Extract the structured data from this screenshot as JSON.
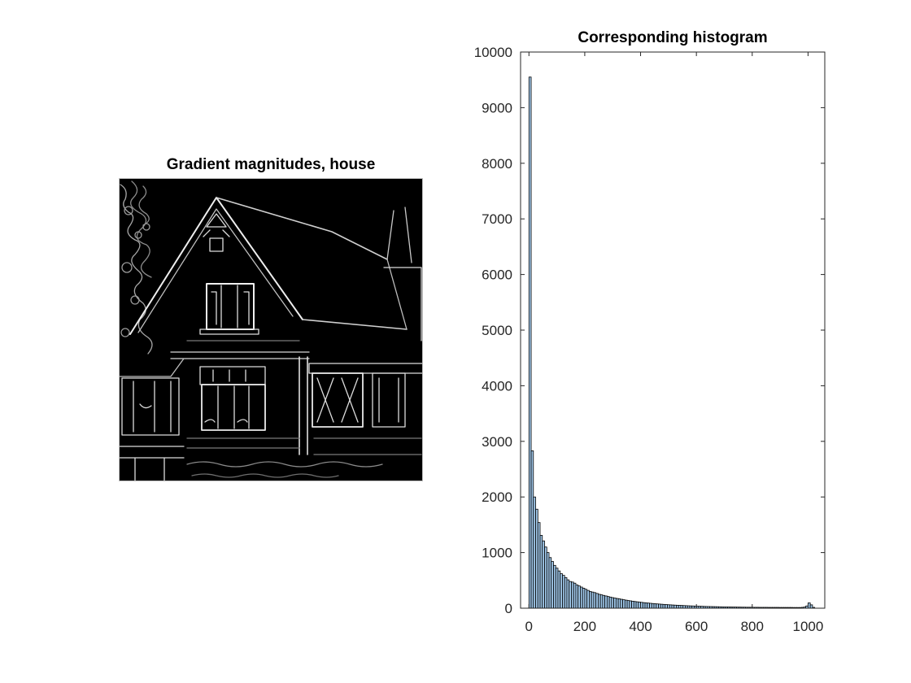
{
  "figure": {
    "left_title": "Gradient magnitudes, house",
    "right_title": "Corresponding histogram"
  },
  "image_panel": {
    "content": "gradient-magnitude edge image of a house",
    "colors": {
      "background": "#000000",
      "edges": "#e6e6e6"
    }
  },
  "chart_data": {
    "type": "bar",
    "title": "Corresponding histogram",
    "xlabel": "",
    "ylabel": "",
    "xlim": [
      -30,
      1060
    ],
    "ylim": [
      0,
      10000
    ],
    "x_ticks": [
      0,
      200,
      400,
      600,
      800,
      1000
    ],
    "y_ticks": [
      0,
      1000,
      2000,
      3000,
      4000,
      5000,
      6000,
      7000,
      8000,
      9000,
      10000
    ],
    "grid": false,
    "bar_color": "#9fc6e8",
    "edge_color": "#000000",
    "bin_width": 8,
    "x": [
      0,
      8,
      16,
      24,
      32,
      40,
      48,
      56,
      64,
      72,
      80,
      88,
      96,
      104,
      112,
      120,
      128,
      136,
      144,
      152,
      160,
      168,
      176,
      184,
      192,
      200,
      208,
      216,
      224,
      232,
      240,
      248,
      256,
      264,
      272,
      280,
      288,
      296,
      304,
      312,
      320,
      328,
      336,
      344,
      352,
      360,
      368,
      376,
      384,
      392,
      400,
      408,
      416,
      424,
      432,
      440,
      448,
      456,
      464,
      472,
      480,
      488,
      496,
      504,
      512,
      520,
      528,
      536,
      544,
      552,
      560,
      568,
      576,
      584,
      592,
      600,
      608,
      616,
      624,
      632,
      640,
      648,
      656,
      664,
      672,
      680,
      688,
      696,
      704,
      712,
      720,
      728,
      736,
      744,
      752,
      760,
      768,
      776,
      784,
      792,
      800,
      808,
      816,
      824,
      832,
      840,
      848,
      856,
      864,
      872,
      880,
      888,
      896,
      904,
      912,
      920,
      928,
      936,
      944,
      952,
      960,
      968,
      976,
      984,
      992,
      1000,
      1008,
      1016
    ],
    "values": [
      9550,
      2830,
      2000,
      1780,
      1540,
      1310,
      1210,
      1100,
      1000,
      910,
      840,
      770,
      720,
      670,
      620,
      590,
      550,
      510,
      480,
      470,
      450,
      420,
      400,
      380,
      360,
      340,
      320,
      300,
      290,
      280,
      265,
      250,
      240,
      230,
      220,
      210,
      200,
      190,
      182,
      175,
      168,
      160,
      152,
      145,
      138,
      132,
      126,
      120,
      115,
      110,
      105,
      100,
      96,
      92,
      88,
      84,
      80,
      77,
      74,
      71,
      68,
      65,
      62,
      60,
      57,
      55,
      53,
      51,
      49,
      47,
      45,
      43,
      41,
      40,
      38,
      36,
      35,
      34,
      32,
      31,
      30,
      29,
      28,
      27,
      26,
      25,
      24,
      23,
      22,
      22,
      21,
      20,
      20,
      19,
      19,
      18,
      18,
      17,
      17,
      17,
      16,
      16,
      16,
      15,
      15,
      15,
      15,
      14,
      14,
      14,
      14,
      14,
      13,
      13,
      13,
      13,
      13,
      13,
      12,
      12,
      12,
      12,
      15,
      20,
      40,
      95,
      60,
      15
    ]
  }
}
